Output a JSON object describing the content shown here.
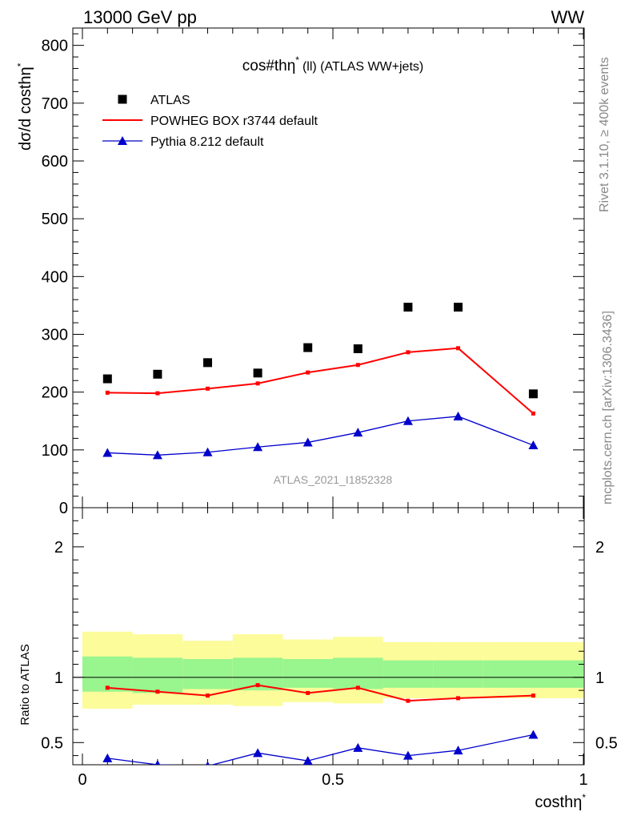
{
  "header": {
    "left": "13000 GeV pp",
    "right": "WW"
  },
  "side_labels": {
    "rivet": "Rivet 3.1.10, ≥ 400k events",
    "mcplots": "mcplots.cern.ch [arXiv:1306.3436]"
  },
  "chart_data": {
    "type": "line",
    "title": "cos#thη",
    "title_sup": "*",
    "title_rest": "(ll) (ATLAS WW+jets)",
    "watermark": "ATLAS_2021_I1852328",
    "xlabel": "costhη",
    "xlabel_sup": "*",
    "ylabel": "dσ/d costhη",
    "ylabel_sup": "*",
    "ratio_ylabel": "Ratio to ATLAS",
    "xlim": [
      0,
      1
    ],
    "ylim": [
      0,
      830
    ],
    "ratio_ylim": [
      0.33,
      2.3
    ],
    "x_ticks": [
      {
        "v": 0,
        "label": "0"
      },
      {
        "v": 0.5,
        "label": "0.5"
      },
      {
        "v": 1,
        "label": "1"
      }
    ],
    "y_ticks": [
      {
        "v": 0,
        "label": "0"
      },
      {
        "v": 100,
        "label": "100"
      },
      {
        "v": 200,
        "label": "200"
      },
      {
        "v": 300,
        "label": "300"
      },
      {
        "v": 400,
        "label": "400"
      },
      {
        "v": 500,
        "label": "500"
      },
      {
        "v": 600,
        "label": "600"
      },
      {
        "v": 700,
        "label": "700"
      },
      {
        "v": 800,
        "label": "800"
      }
    ],
    "ratio_ticks": [
      {
        "v": 0.5,
        "label": "0.5"
      },
      {
        "v": 1,
        "label": "1"
      },
      {
        "v": 2,
        "label": "2"
      }
    ],
    "bins": [
      {
        "lo": 0.0,
        "hi": 0.1,
        "x": 0.05
      },
      {
        "lo": 0.1,
        "hi": 0.2,
        "x": 0.15
      },
      {
        "lo": 0.2,
        "hi": 0.3,
        "x": 0.25
      },
      {
        "lo": 0.3,
        "hi": 0.4,
        "x": 0.35
      },
      {
        "lo": 0.4,
        "hi": 0.5,
        "x": 0.45
      },
      {
        "lo": 0.5,
        "hi": 0.6,
        "x": 0.55
      },
      {
        "lo": 0.6,
        "hi": 0.7,
        "x": 0.65
      },
      {
        "lo": 0.7,
        "hi": 0.8,
        "x": 0.75
      },
      {
        "lo": 0.8,
        "hi": 1.0,
        "x": 0.9
      }
    ],
    "series": [
      {
        "name": "ATLAS",
        "marker": "square",
        "color": "#000000",
        "values": [
          223,
          231,
          251,
          233,
          277,
          275,
          347,
          347,
          197
        ]
      },
      {
        "name": "POWHEG BOX r3744 default",
        "marker": "line",
        "color": "#ff0000",
        "values": [
          199,
          198,
          206,
          215,
          234,
          247,
          269,
          276,
          163
        ]
      },
      {
        "name": "Pythia 8.212 default",
        "marker": "triangle",
        "color": "#0000cc",
        "values": [
          95,
          91,
          96,
          105,
          113,
          130,
          150,
          158,
          108
        ]
      }
    ],
    "ratio": {
      "powheg": [
        0.92,
        0.89,
        0.86,
        0.94,
        0.88,
        0.92,
        0.82,
        0.84,
        0.86
      ],
      "pythia": [
        0.38,
        0.33,
        0.32,
        0.42,
        0.36,
        0.46,
        0.4,
        0.44,
        0.56
      ],
      "band_stat_lo": [
        0.89,
        0.88,
        0.91,
        0.9,
        0.92,
        0.91,
        0.92,
        0.92,
        0.92
      ],
      "band_stat_hi": [
        1.16,
        1.15,
        1.14,
        1.15,
        1.14,
        1.15,
        1.13,
        1.13,
        1.13
      ],
      "band_tot_lo": [
        0.76,
        0.79,
        0.79,
        0.78,
        0.81,
        0.8,
        0.84,
        0.84,
        0.84
      ],
      "band_tot_hi": [
        1.35,
        1.33,
        1.28,
        1.33,
        1.29,
        1.31,
        1.27,
        1.27,
        1.27
      ]
    },
    "colors": {
      "band_stat": "#99f58e",
      "band_tot": "#fcfc9a"
    }
  }
}
